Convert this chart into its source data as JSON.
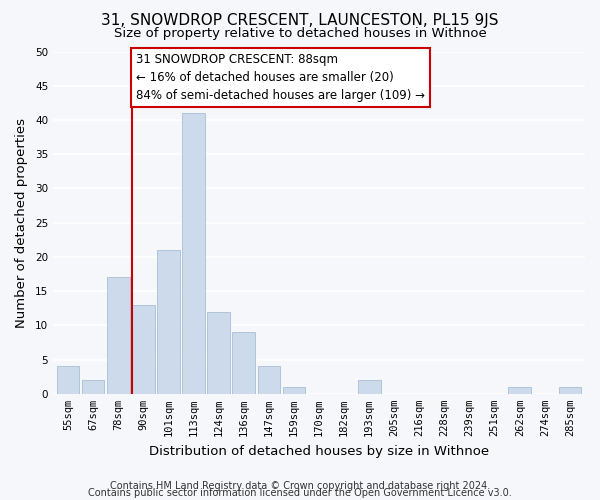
{
  "title": "31, SNOWDROP CRESCENT, LAUNCESTON, PL15 9JS",
  "subtitle": "Size of property relative to detached houses in Withnoe",
  "xlabel": "Distribution of detached houses by size in Withnoe",
  "ylabel": "Number of detached properties",
  "bin_labels": [
    "55sqm",
    "67sqm",
    "78sqm",
    "90sqm",
    "101sqm",
    "113sqm",
    "124sqm",
    "136sqm",
    "147sqm",
    "159sqm",
    "170sqm",
    "182sqm",
    "193sqm",
    "205sqm",
    "216sqm",
    "228sqm",
    "239sqm",
    "251sqm",
    "262sqm",
    "274sqm",
    "285sqm"
  ],
  "bar_values": [
    4,
    2,
    17,
    13,
    21,
    41,
    12,
    9,
    4,
    1,
    0,
    0,
    2,
    0,
    0,
    0,
    0,
    0,
    1,
    0,
    1
  ],
  "bar_color": "#ccdaeb",
  "bar_edge_color": "#a8bfd4",
  "subject_line_color": "#cc0000",
  "ylim": [
    0,
    50
  ],
  "yticks": [
    0,
    5,
    10,
    15,
    20,
    25,
    30,
    35,
    40,
    45,
    50
  ],
  "annotation_lines": [
    "31 SNOWDROP CRESCENT: 88sqm",
    "← 16% of detached houses are smaller (20)",
    "84% of semi-detached houses are larger (109) →"
  ],
  "annotation_box_facecolor": "#ffffff",
  "annotation_box_edgecolor": "#cc0000",
  "footer_lines": [
    "Contains HM Land Registry data © Crown copyright and database right 2024.",
    "Contains public sector information licensed under the Open Government Licence v3.0."
  ],
  "bg_color": "#f5f7fa",
  "grid_color": "#ffffff",
  "title_fontsize": 11,
  "subtitle_fontsize": 9.5,
  "axis_label_fontsize": 9.5,
  "tick_fontsize": 7.5,
  "annotation_fontsize": 8.5,
  "footer_fontsize": 7
}
